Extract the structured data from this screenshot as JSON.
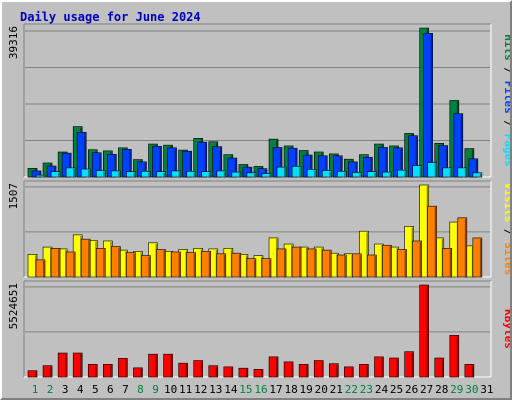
{
  "title": "Daily usage for June 2024",
  "colors": {
    "hits": "#008040",
    "files": "#0040ff",
    "pages": "#00e0ff",
    "visits": "#ffff00",
    "sites": "#ff8000",
    "kbytes": "#ff0000",
    "weekend_day": "#008040",
    "weekday": "#000000"
  },
  "chart_data": [
    {
      "type": "bar",
      "panel": "hits-files-pages",
      "y_label": "39316",
      "ylim": [
        0,
        39316
      ],
      "right_labels": [
        "Pages",
        "Files",
        "Hits"
      ],
      "categories": [
        "1",
        "2",
        "3",
        "4",
        "5",
        "6",
        "7",
        "8",
        "9",
        "10",
        "11",
        "12",
        "13",
        "14",
        "15",
        "16",
        "17",
        "18",
        "19",
        "20",
        "21",
        "22",
        "23",
        "24",
        "25",
        "26",
        "27",
        "28",
        "29",
        "30",
        "31"
      ],
      "series": [
        {
          "name": "Hits",
          "values": [
            2300,
            3700,
            6600,
            13300,
            7200,
            6900,
            7700,
            4600,
            8700,
            8400,
            7100,
            10200,
            9300,
            5900,
            3300,
            2800,
            10000,
            8200,
            7000,
            6600,
            6100,
            4700,
            5900,
            8700,
            8200,
            11500,
            39300,
            8900,
            20200,
            7500,
            0
          ]
        },
        {
          "name": "Files",
          "values": [
            1600,
            2900,
            6300,
            11800,
            6400,
            6000,
            7300,
            4000,
            8100,
            7700,
            6800,
            9200,
            8000,
            5000,
            2600,
            2200,
            7800,
            7600,
            5800,
            5600,
            5600,
            4000,
            5200,
            7800,
            7700,
            10900,
            37900,
            8300,
            16700,
            4800,
            0
          ]
        },
        {
          "name": "Pages",
          "values": [
            500,
            1400,
            2400,
            2100,
            1700,
            1600,
            1400,
            1500,
            1400,
            1600,
            1500,
            1400,
            1600,
            1300,
            1100,
            900,
            2600,
            2800,
            2000,
            1700,
            1500,
            1200,
            1400,
            1300,
            1800,
            3000,
            3800,
            2400,
            2400,
            1100,
            0
          ]
        }
      ]
    },
    {
      "type": "bar",
      "panel": "visits-sites",
      "y_label": "1507",
      "ylim": [
        0,
        1507
      ],
      "right_labels": [
        "Sites",
        "Visits"
      ],
      "categories": [
        "1",
        "2",
        "3",
        "4",
        "5",
        "6",
        "7",
        "8",
        "9",
        "10",
        "11",
        "12",
        "13",
        "14",
        "15",
        "16",
        "17",
        "18",
        "19",
        "20",
        "21",
        "22",
        "23",
        "24",
        "25",
        "26",
        "27",
        "28",
        "29",
        "30",
        "31"
      ],
      "series": [
        {
          "name": "Visits",
          "values": [
            370,
            490,
            460,
            690,
            600,
            590,
            440,
            420,
            560,
            420,
            450,
            470,
            460,
            470,
            370,
            350,
            640,
            540,
            490,
            490,
            390,
            380,
            750,
            540,
            490,
            830,
            1507,
            640,
            900,
            510,
            0
          ]
        },
        {
          "name": "Sites",
          "values": [
            280,
            470,
            410,
            620,
            470,
            500,
            400,
            350,
            450,
            410,
            400,
            420,
            380,
            390,
            300,
            300,
            460,
            490,
            460,
            440,
            360,
            380,
            360,
            520,
            450,
            590,
            1160,
            470,
            970,
            640,
            0
          ]
        }
      ]
    },
    {
      "type": "bar",
      "panel": "kbytes",
      "y_label": "5524651",
      "ylim": [
        0,
        5524651
      ],
      "right_labels": [
        "KBytes"
      ],
      "categories": [
        "1",
        "2",
        "3",
        "4",
        "5",
        "6",
        "7",
        "8",
        "9",
        "10",
        "11",
        "12",
        "13",
        "14",
        "15",
        "16",
        "17",
        "18",
        "19",
        "20",
        "21",
        "22",
        "23",
        "24",
        "25",
        "26",
        "27",
        "28",
        "29",
        "30",
        "31"
      ],
      "series": [
        {
          "name": "KBytes",
          "values": [
            380000,
            680000,
            1440000,
            1440000,
            760000,
            760000,
            1120000,
            550000,
            1370000,
            1370000,
            830000,
            990000,
            680000,
            610000,
            530000,
            460000,
            1210000,
            910000,
            760000,
            990000,
            800000,
            610000,
            760000,
            1210000,
            1140000,
            1520000,
            5524651,
            1140000,
            2500000,
            760000,
            0
          ]
        }
      ]
    }
  ],
  "x_axis": {
    "labels": [
      "1",
      "2",
      "3",
      "4",
      "5",
      "6",
      "7",
      "8",
      "9",
      "10",
      "11",
      "12",
      "13",
      "14",
      "15",
      "16",
      "17",
      "18",
      "19",
      "20",
      "21",
      "22",
      "23",
      "24",
      "25",
      "26",
      "27",
      "28",
      "29",
      "30",
      "31"
    ],
    "weekend": [
      1,
      2,
      8,
      9,
      15,
      16,
      22,
      23,
      29,
      30
    ]
  }
}
